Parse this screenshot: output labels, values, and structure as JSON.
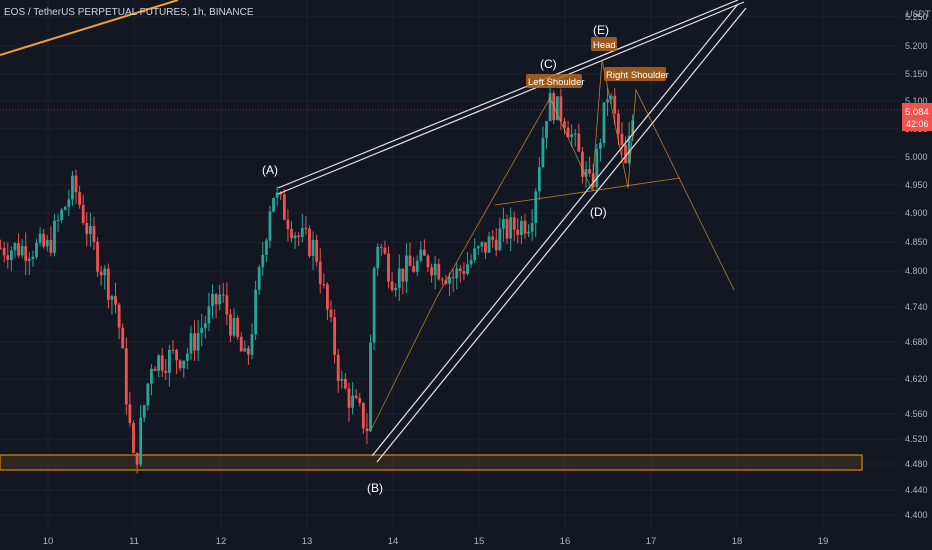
{
  "header": {
    "symbol": "EOS / TetherUS PERPETUAL FUTURES, 1h, BINANCE"
  },
  "axis": {
    "unit": "USDT",
    "y_ticks": [
      "5.250",
      "5.200",
      "5.150",
      "5.100",
      "5.050",
      "5.000",
      "4.950",
      "4.900",
      "4.850",
      "4.800",
      "4.740",
      "4.680",
      "4.620",
      "4.560",
      "4.520",
      "4.480",
      "4.440",
      "4.400"
    ],
    "x_ticks": [
      "10",
      "11",
      "12",
      "13",
      "14",
      "15",
      "16",
      "17",
      "18",
      "19"
    ],
    "price_label": {
      "value": "5.084",
      "countdown": "42:06"
    }
  },
  "labels": {
    "A": "(A)",
    "B": "(B)",
    "C": "(C)",
    "D": "(D)",
    "E": "(E)",
    "left_shoulder": "Left Shoulder",
    "head": "Head",
    "right_shoulder": "Right Shoulder"
  },
  "colors": {
    "background": "#131722",
    "up": "#26a69a",
    "down": "#ef5350",
    "pattern": "#f0a030",
    "label_box": "#b5651d",
    "support_zone": "#ff9800",
    "price_tag": "#ef5350"
  },
  "chart_data": {
    "type": "candlestick",
    "x_axis_labels": [
      "10",
      "11",
      "12",
      "13",
      "14",
      "15",
      "16",
      "17",
      "18",
      "19"
    ],
    "y_range": [
      4.38,
      5.28
    ],
    "last_price": 5.084,
    "support_zone": [
      4.47,
      4.495
    ],
    "ohlc_path": [
      {
        "x": "10.0",
        "close": 4.84
      },
      {
        "x": "10.3",
        "close": 4.95
      },
      {
        "x": "10.5",
        "close": 4.85
      },
      {
        "x": "10.8",
        "close": 4.74
      },
      {
        "x": "11.0",
        "close": 4.47
      },
      {
        "x": "11.2",
        "close": 4.65
      },
      {
        "x": "11.6",
        "close": 4.66
      },
      {
        "x": "12.0",
        "close": 4.76
      },
      {
        "x": "12.3",
        "close": 4.64
      },
      {
        "x": "12.6",
        "close": 4.94
      },
      {
        "x": "12.9",
        "close": 4.86
      },
      {
        "x": "13.1",
        "close": 4.84
      },
      {
        "x": "13.4",
        "close": 4.61
      },
      {
        "x": "13.7",
        "close": 4.54
      },
      {
        "x": "13.8",
        "close": 4.86
      },
      {
        "x": "14.0",
        "close": 4.79
      },
      {
        "x": "14.4",
        "close": 4.82
      },
      {
        "x": "14.7",
        "close": 4.79
      },
      {
        "x": "15.2",
        "close": 4.86
      },
      {
        "x": "15.6",
        "close": 4.89
      },
      {
        "x": "15.8",
        "close": 5.1
      },
      {
        "x": "16.0",
        "close": 5.07
      },
      {
        "x": "16.3",
        "close": 4.94
      },
      {
        "x": "16.5",
        "close": 5.12
      },
      {
        "x": "16.7",
        "close": 4.98
      },
      {
        "x": "16.8",
        "close": 5.084
      }
    ]
  }
}
